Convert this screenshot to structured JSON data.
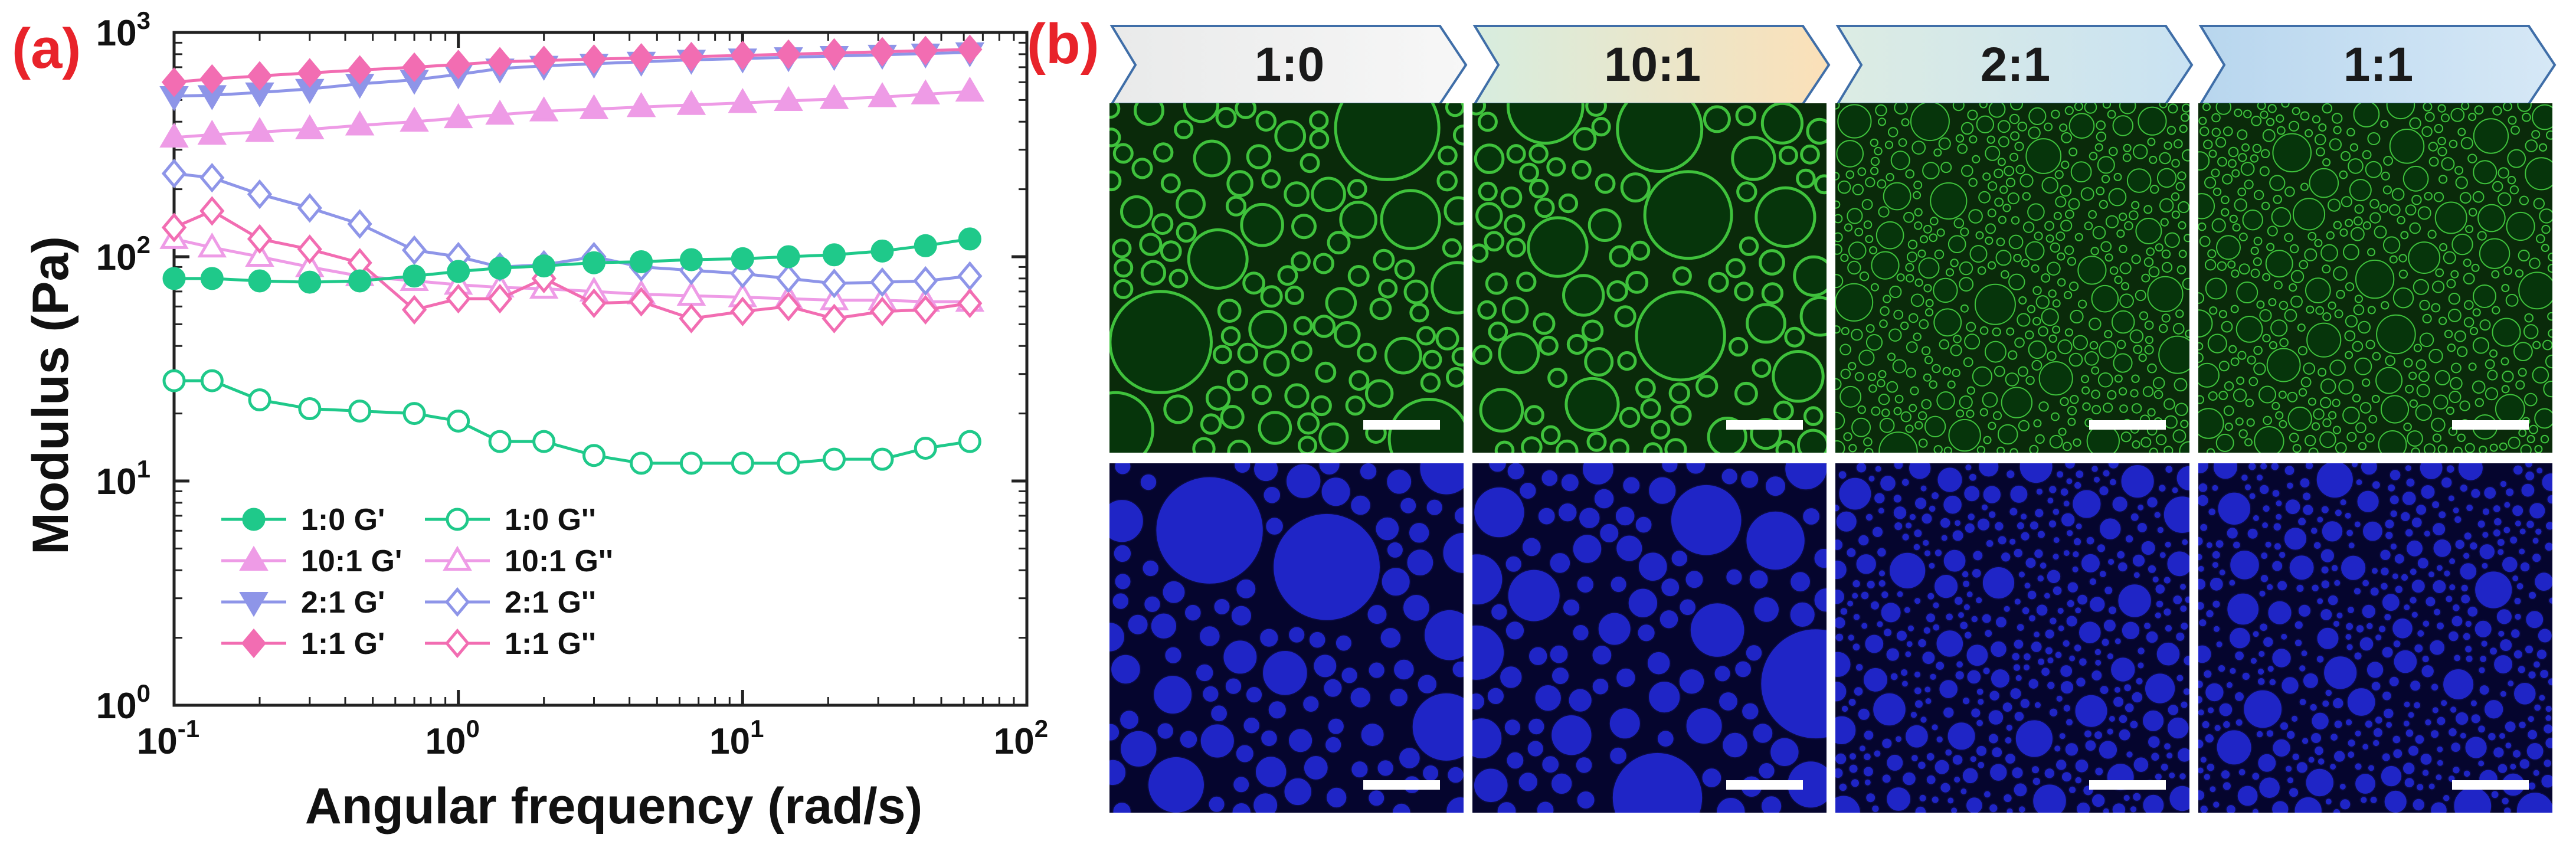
{
  "panel_a_label": "(a)",
  "panel_b_label": "(b)",
  "chart_data": {
    "type": "line",
    "xscale": "log",
    "yscale": "log",
    "xlabel": "Angular frequency (rad/s)",
    "ylabel": "Modulus (Pa)",
    "xlim": [
      0.1,
      100
    ],
    "ylim": [
      1,
      1000
    ],
    "xticks": [
      {
        "base": "10",
        "exp": "-1"
      },
      {
        "base": "10",
        "exp": "0"
      },
      {
        "base": "10",
        "exp": "1"
      },
      {
        "base": "10",
        "exp": "2"
      }
    ],
    "yticks": [
      {
        "base": "10",
        "exp": "0"
      },
      {
        "base": "10",
        "exp": "1"
      },
      {
        "base": "10",
        "exp": "2"
      },
      {
        "base": "10",
        "exp": "3"
      }
    ],
    "x": [
      0.1,
      0.136,
      0.2,
      0.3,
      0.45,
      0.7,
      1.0,
      1.4,
      2.0,
      3.0,
      4.4,
      6.6,
      10,
      14.5,
      21,
      31,
      44,
      63
    ],
    "series": [
      {
        "name": "1:0 G'",
        "color": "#1fc98a",
        "marker": "circle",
        "filled": true,
        "values": [
          80,
          80,
          78,
          77,
          78,
          82,
          86,
          89,
          91,
          94,
          95,
          97,
          98,
          100,
          102,
          106,
          112,
          120
        ]
      },
      {
        "name": "1:0 G''",
        "color": "#1fc98a",
        "marker": "circle",
        "filled": false,
        "values": [
          28,
          28,
          23,
          21,
          20.5,
          20,
          18.5,
          15,
          15,
          13,
          12,
          12,
          12,
          12,
          12.5,
          12.5,
          14,
          15
        ]
      },
      {
        "name": "10:1 G'",
        "color": "#ee9be6",
        "marker": "triangle-up",
        "filled": true,
        "values": [
          340,
          350,
          360,
          370,
          385,
          400,
          415,
          430,
          445,
          455,
          465,
          475,
          485,
          495,
          505,
          515,
          530,
          545
        ]
      },
      {
        "name": "10:1 G''",
        "color": "#ee9be6",
        "marker": "triangle-up",
        "filled": false,
        "values": [
          120,
          110,
          100,
          90,
          82,
          78,
          75,
          73,
          72,
          70,
          68,
          67,
          66,
          65,
          64,
          64,
          63,
          63
        ]
      },
      {
        "name": "2:1 G'",
        "color": "#8e95e8",
        "marker": "triangle-down",
        "filled": true,
        "values": [
          520,
          525,
          540,
          560,
          590,
          615,
          650,
          690,
          710,
          725,
          740,
          755,
          765,
          775,
          785,
          795,
          805,
          815
        ]
      },
      {
        "name": "2:1 G''",
        "color": "#8e95e8",
        "marker": "diamond",
        "filled": false,
        "values": [
          235,
          225,
          190,
          165,
          140,
          107,
          100,
          90,
          92,
          100,
          90,
          87,
          84,
          80,
          76,
          77,
          78,
          82
        ]
      },
      {
        "name": "1:1 G'",
        "color": "#f26db2",
        "marker": "diamond",
        "filled": true,
        "values": [
          600,
          620,
          640,
          660,
          680,
          700,
          720,
          740,
          750,
          760,
          770,
          780,
          790,
          800,
          810,
          820,
          830,
          840
        ]
      },
      {
        "name": "1:1 G''",
        "color": "#f26db2",
        "marker": "diamond",
        "filled": false,
        "values": [
          135,
          160,
          120,
          108,
          94,
          58,
          65,
          65,
          80,
          62,
          63,
          53,
          57,
          60,
          53,
          57,
          58,
          62
        ]
      }
    ],
    "legend": [
      [
        "1:0 G'",
        "1:0 G''"
      ],
      [
        "10:1 G'",
        "10:1 G''"
      ],
      [
        "2:1 G'",
        "2:1 G''"
      ],
      [
        "1:1 G'",
        "1:1 G''"
      ]
    ],
    "legend_position": "bottom-left"
  },
  "panel_b": {
    "ratios": [
      "1:0",
      "10:1",
      "2:1",
      "1:1"
    ],
    "header_gradients": [
      [
        "#e9eaea",
        "#f7f7f7"
      ],
      [
        "#d7eddf",
        "#fbe0b8"
      ],
      [
        "#dcece3",
        "#c9e2f2"
      ],
      [
        "#b8d6ee",
        "#d6e8f6"
      ]
    ],
    "rows": [
      {
        "channel": "green",
        "bg": "#0a2a0a",
        "drop": "#06350b",
        "rim": "#3fc23c"
      },
      {
        "channel": "blue",
        "bg": "#05052e",
        "drop": "#1f25c6",
        "rim": "#0a0a40"
      }
    ]
  }
}
